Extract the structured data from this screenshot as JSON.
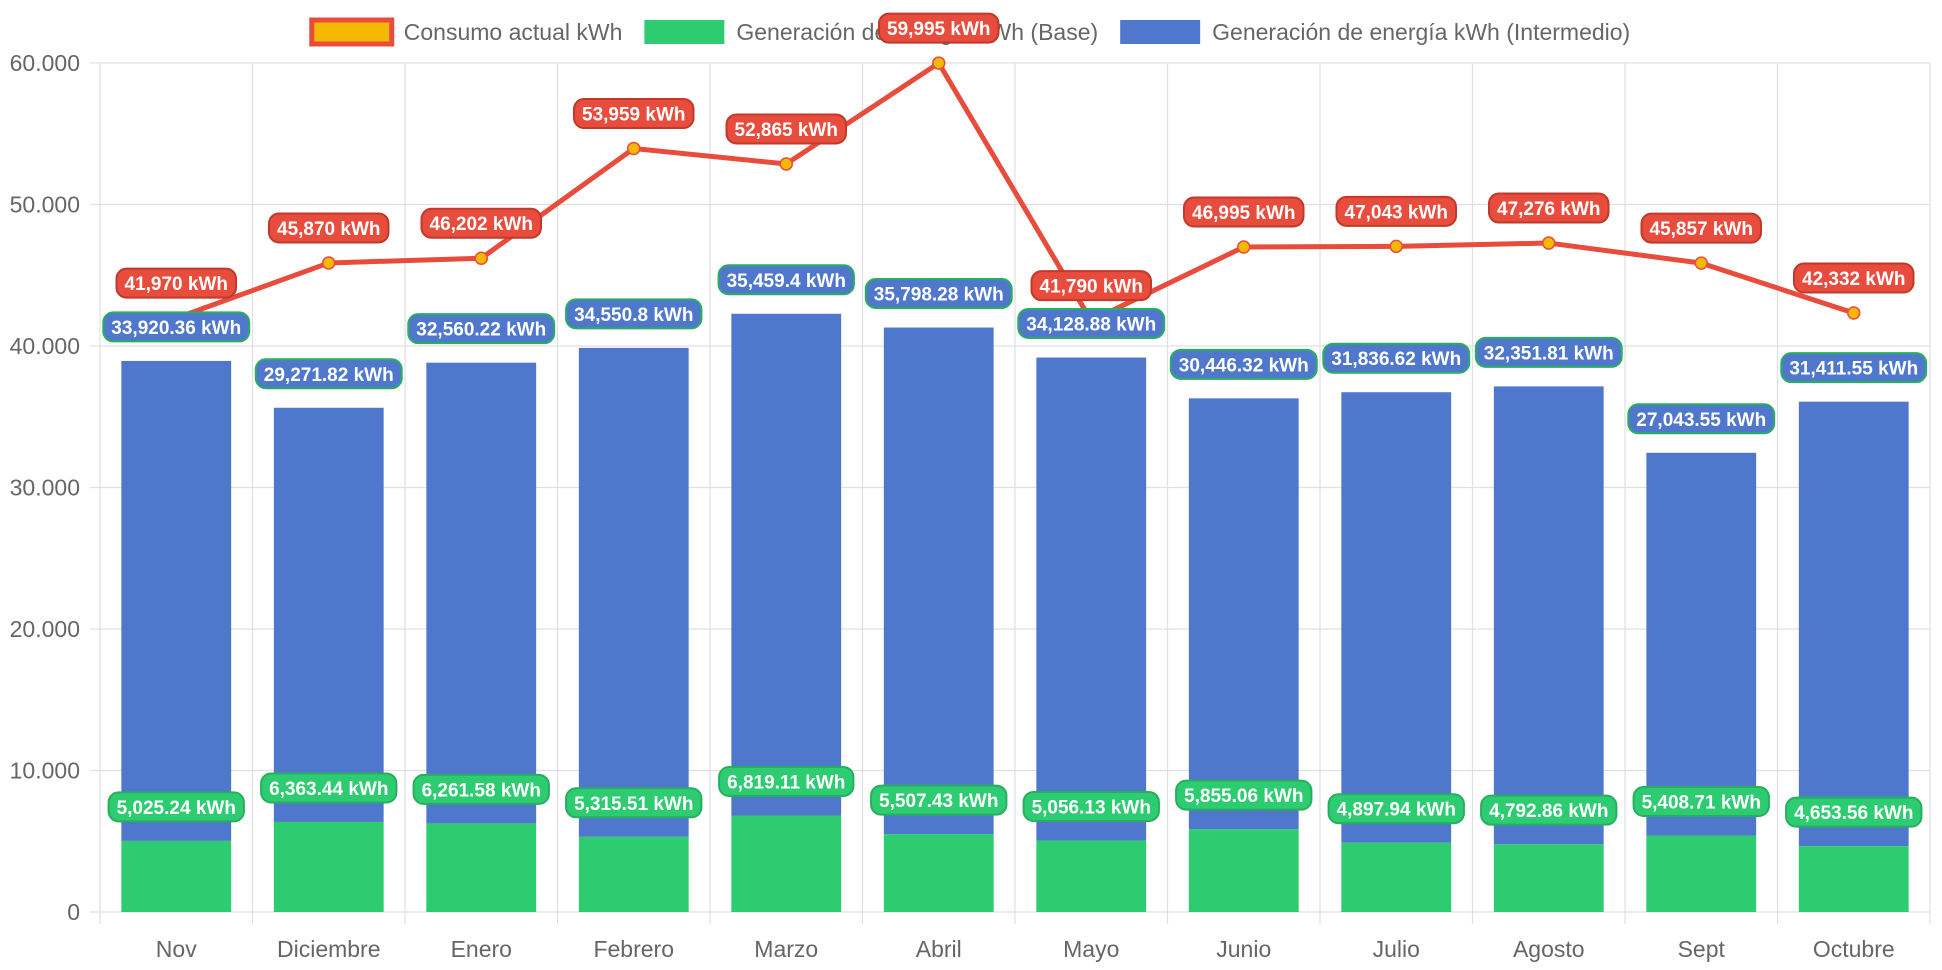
{
  "chart_data": {
    "type": "bar",
    "stacked": true,
    "categories": [
      "Nov",
      "Diciembre",
      "Enero",
      "Febrero",
      "Marzo",
      "Abril",
      "Mayo",
      "Junio",
      "Julio",
      "Agosto",
      "Sept",
      "Octubre"
    ],
    "ylim": [
      0,
      60000
    ],
    "yticks": [
      0,
      10000,
      20000,
      30000,
      40000,
      50000,
      60000
    ],
    "ytick_labels": [
      "0",
      "10.000",
      "20.000",
      "30.000",
      "40.000",
      "50.000",
      "60.000"
    ],
    "grid": true,
    "legend_position": "top",
    "series": [
      {
        "name": "Consumo actual kWh",
        "type": "line",
        "color": "#e74c3c",
        "point_color": "#f5b800",
        "values": [
          41970,
          45870,
          46202,
          53959,
          52865,
          59995,
          41790,
          46995,
          47043,
          47276,
          45857,
          42332
        ],
        "labels": [
          "41,970 kWh",
          "45,870 kWh",
          "46,202 kWh",
          "53,959 kWh",
          "52,865 kWh",
          "59,995 kWh",
          "41,790 kWh",
          "46,995 kWh",
          "47,043 kWh",
          "47,276 kWh",
          "45,857 kWh",
          "42,332 kWh"
        ]
      },
      {
        "name": "Generación de energía kWh (Base)",
        "type": "bar",
        "color": "#2ecc71",
        "values": [
          5025.24,
          6363.44,
          6261.58,
          5315.51,
          6819.11,
          5507.43,
          5056.13,
          5855.06,
          4897.94,
          4792.86,
          5408.71,
          4653.56
        ],
        "labels": [
          "5,025.24 kWh",
          "6,363.44 kWh",
          "6,261.58 kWh",
          "5,315.51 kWh",
          "6,819.11 kWh",
          "5,507.43 kWh",
          "5,056.13 kWh",
          "5,855.06 kWh",
          "4,897.94 kWh",
          "4,792.86 kWh",
          "5,408.71 kWh",
          "4,653.56 kWh"
        ]
      },
      {
        "name": "Generación de energía kWh (Intermedio)",
        "type": "bar",
        "color": "#4f78cc",
        "values": [
          33920.36,
          29271.82,
          32560.22,
          34550.8,
          35459.4,
          35798.28,
          34128.88,
          30446.32,
          31836.62,
          32351.81,
          27043.55,
          31411.55
        ],
        "labels": [
          "33,920.36 kWh",
          "29,271.82 kWh",
          "32,560.22 kWh",
          "34,550.8 kWh",
          "35,459.4 kWh",
          "35,798.28 kWh",
          "34,128.88 kWh",
          "30,446.32 kWh",
          "31,836.62 kWh",
          "32,351.81 kWh",
          "27,043.55 kWh",
          "31,411.55 kWh"
        ]
      }
    ]
  }
}
